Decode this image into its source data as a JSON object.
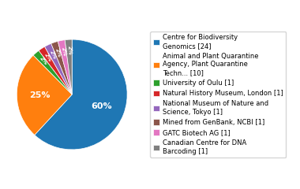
{
  "chart_data": {
    "type": "pie",
    "categories": [
      "Centre for Biodiversity\nGenomics [24]",
      "Animal and Plant Quarantine\nAgency, Plant Quarantine\nTechn... [10]",
      "University of Oulu [1]",
      "Natural History Museum, London [1]",
      "National Museum of Nature and\nScience, Tokyo [1]",
      "Mined from GenBank, NCBI [1]",
      "GATC Biotech AG [1]",
      "Canadian Centre for DNA\nBarcoding [1]"
    ],
    "values": [
      60,
      25,
      2,
      2,
      2,
      2,
      2,
      2
    ],
    "value_labels": [
      "60%",
      "25%",
      "2%",
      "2%",
      "2%",
      "2%",
      "2%",
      "2%"
    ],
    "data_labels": true,
    "legend": "center left"
  }
}
